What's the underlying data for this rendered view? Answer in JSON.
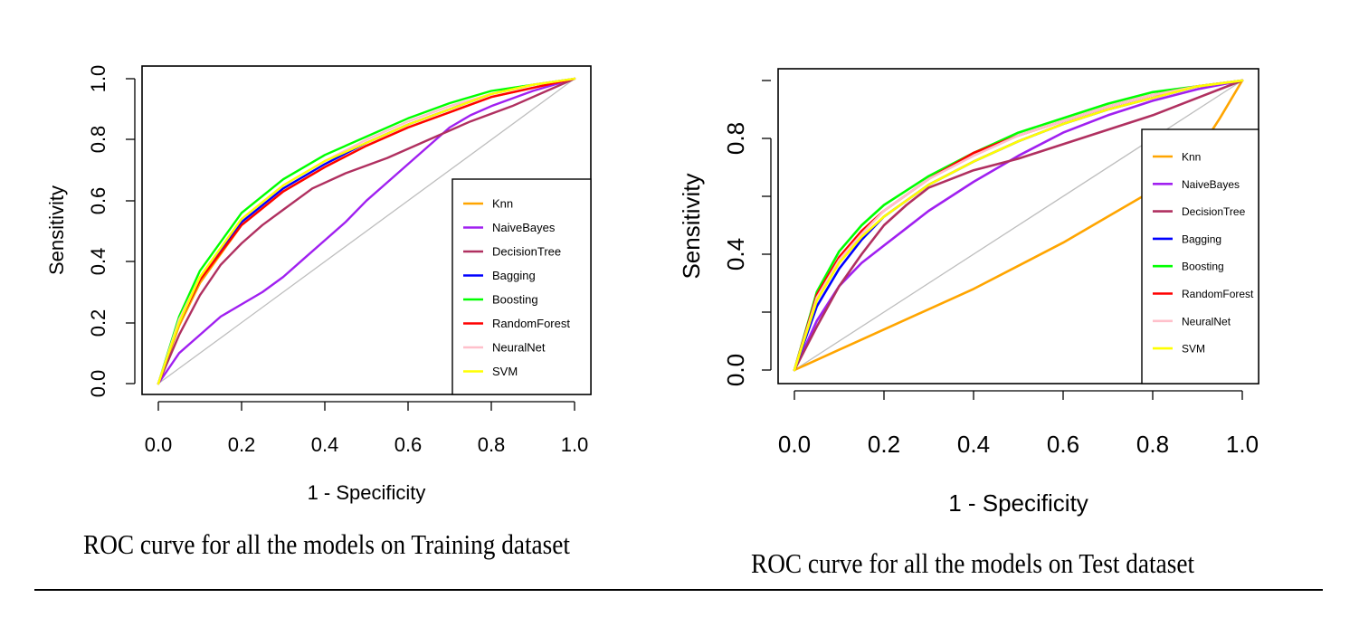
{
  "chart_data": [
    {
      "type": "line",
      "title": "",
      "caption": "ROC curve for all the models on Training dataset",
      "xlabel": "1 - Specificity",
      "ylabel": "Sensitivity",
      "xlim": [
        0,
        1
      ],
      "ylim": [
        0,
        1
      ],
      "xticks": [
        "0.0",
        "0.2",
        "0.4",
        "0.6",
        "0.8",
        "1.0"
      ],
      "yticks": [
        "0.0",
        "0.2",
        "0.4",
        "0.6",
        "0.8",
        "1.0"
      ],
      "diagonal_color": "#bebebe",
      "legend_position": "bottom-right",
      "series": [
        {
          "name": "Knn",
          "color": "#FFA500",
          "x": [
            0,
            0.05,
            0.1,
            0.2,
            0.3,
            0.4,
            0.5,
            0.6,
            0.7,
            0.8,
            0.9,
            1.0
          ],
          "y": [
            0,
            0.19,
            0.33,
            0.52,
            0.63,
            0.71,
            0.78,
            0.84,
            0.89,
            0.94,
            0.97,
            1.0
          ]
        },
        {
          "name": "NaiveBayes",
          "color": "#A020F0",
          "x": [
            0,
            0.05,
            0.1,
            0.15,
            0.2,
            0.25,
            0.3,
            0.35,
            0.4,
            0.45,
            0.5,
            0.55,
            0.6,
            0.65,
            0.7,
            0.75,
            0.8,
            0.9,
            1.0
          ],
          "y": [
            0,
            0.1,
            0.16,
            0.22,
            0.26,
            0.3,
            0.35,
            0.41,
            0.47,
            0.53,
            0.6,
            0.66,
            0.72,
            0.78,
            0.84,
            0.88,
            0.91,
            0.96,
            1.0
          ]
        },
        {
          "name": "DecisionTree",
          "color": "#B03060",
          "x": [
            0,
            0.05,
            0.1,
            0.15,
            0.2,
            0.25,
            0.3,
            0.37,
            0.45,
            0.55,
            0.65,
            0.75,
            0.85,
            1.0
          ],
          "y": [
            0,
            0.16,
            0.29,
            0.39,
            0.46,
            0.52,
            0.57,
            0.64,
            0.69,
            0.74,
            0.8,
            0.86,
            0.91,
            1.0
          ]
        },
        {
          "name": "Bagging",
          "color": "#0000FF",
          "x": [
            0,
            0.05,
            0.1,
            0.2,
            0.3,
            0.4,
            0.5,
            0.6,
            0.7,
            0.8,
            0.9,
            1.0
          ],
          "y": [
            0,
            0.2,
            0.34,
            0.53,
            0.64,
            0.72,
            0.79,
            0.85,
            0.9,
            0.95,
            0.98,
            1.0
          ]
        },
        {
          "name": "Boosting",
          "color": "#00FF00",
          "x": [
            0,
            0.05,
            0.1,
            0.2,
            0.3,
            0.4,
            0.5,
            0.6,
            0.7,
            0.8,
            0.9,
            1.0
          ],
          "y": [
            0,
            0.22,
            0.37,
            0.56,
            0.67,
            0.75,
            0.81,
            0.87,
            0.92,
            0.96,
            0.98,
            1.0
          ]
        },
        {
          "name": "RandomForest",
          "color": "#FF0000",
          "x": [
            0,
            0.05,
            0.1,
            0.2,
            0.3,
            0.4,
            0.5,
            0.6,
            0.7,
            0.8,
            0.9,
            1.0
          ],
          "y": [
            0,
            0.2,
            0.34,
            0.52,
            0.63,
            0.71,
            0.78,
            0.84,
            0.89,
            0.94,
            0.97,
            1.0
          ]
        },
        {
          "name": "NeuralNet",
          "color": "#FFC0CB",
          "x": [
            0,
            0.05,
            0.1,
            0.2,
            0.3,
            0.4,
            0.5,
            0.6,
            0.7,
            0.8,
            0.9,
            1.0
          ],
          "y": [
            0,
            0.21,
            0.35,
            0.54,
            0.65,
            0.73,
            0.8,
            0.86,
            0.91,
            0.95,
            0.98,
            1.0
          ]
        },
        {
          "name": "SVM",
          "color": "#FFFF00",
          "x": [
            0,
            0.05,
            0.1,
            0.2,
            0.3,
            0.4,
            0.5,
            0.6,
            0.7,
            0.8,
            0.9,
            1.0
          ],
          "y": [
            0,
            0.2,
            0.35,
            0.54,
            0.65,
            0.73,
            0.79,
            0.85,
            0.9,
            0.95,
            0.98,
            1.0
          ]
        }
      ]
    },
    {
      "type": "line",
      "title": "",
      "caption": "ROC curve for all the models on Test dataset",
      "xlabel": "1 - Specificity",
      "ylabel": "Sensitivity",
      "xlim": [
        0,
        1
      ],
      "ylim": [
        0,
        1
      ],
      "xticks": [
        "0.0",
        "0.2",
        "0.4",
        "0.6",
        "0.8",
        "1.0"
      ],
      "yticks": [
        "0.0",
        "0.4",
        "0.8"
      ],
      "diagonal_color": "#bebebe",
      "legend_position": "bottom-right",
      "series": [
        {
          "name": "Knn",
          "color": "#FFA500",
          "x": [
            0,
            0.1,
            0.2,
            0.3,
            0.4,
            0.5,
            0.6,
            0.7,
            0.8,
            0.9,
            0.95,
            1.0
          ],
          "y": [
            0,
            0.07,
            0.14,
            0.21,
            0.28,
            0.36,
            0.44,
            0.53,
            0.62,
            0.75,
            0.87,
            1.0
          ]
        },
        {
          "name": "NaiveBayes",
          "color": "#A020F0",
          "x": [
            0,
            0.05,
            0.1,
            0.15,
            0.2,
            0.25,
            0.3,
            0.35,
            0.4,
            0.5,
            0.6,
            0.7,
            0.8,
            0.9,
            1.0
          ],
          "y": [
            0,
            0.17,
            0.29,
            0.37,
            0.43,
            0.49,
            0.55,
            0.6,
            0.65,
            0.74,
            0.82,
            0.88,
            0.93,
            0.97,
            1.0
          ]
        },
        {
          "name": "DecisionTree",
          "color": "#B03060",
          "x": [
            0,
            0.05,
            0.1,
            0.15,
            0.2,
            0.25,
            0.3,
            0.35,
            0.4,
            0.5,
            0.6,
            0.7,
            0.8,
            0.9,
            1.0
          ],
          "y": [
            0,
            0.15,
            0.29,
            0.4,
            0.5,
            0.57,
            0.63,
            0.66,
            0.69,
            0.73,
            0.78,
            0.83,
            0.88,
            0.94,
            1.0
          ]
        },
        {
          "name": "Bagging",
          "color": "#0000FF",
          "x": [
            0,
            0.05,
            0.1,
            0.15,
            0.2,
            0.3,
            0.4,
            0.5,
            0.6,
            0.7,
            0.8,
            0.9,
            1.0
          ],
          "y": [
            0,
            0.22,
            0.35,
            0.45,
            0.53,
            0.64,
            0.72,
            0.79,
            0.85,
            0.9,
            0.94,
            0.98,
            1.0
          ]
        },
        {
          "name": "Boosting",
          "color": "#00FF00",
          "x": [
            0,
            0.05,
            0.1,
            0.15,
            0.2,
            0.3,
            0.4,
            0.5,
            0.6,
            0.7,
            0.8,
            0.9,
            1.0
          ],
          "y": [
            0,
            0.27,
            0.41,
            0.5,
            0.57,
            0.67,
            0.75,
            0.82,
            0.87,
            0.92,
            0.96,
            0.98,
            1.0
          ]
        },
        {
          "name": "RandomForest",
          "color": "#FF0000",
          "x": [
            0,
            0.05,
            0.1,
            0.15,
            0.2,
            0.3,
            0.4,
            0.5,
            0.6,
            0.7,
            0.8,
            0.9,
            1.0
          ],
          "y": [
            0,
            0.26,
            0.39,
            0.48,
            0.55,
            0.66,
            0.75,
            0.81,
            0.86,
            0.91,
            0.95,
            0.98,
            1.0
          ]
        },
        {
          "name": "NeuralNet",
          "color": "#FFC0CB",
          "x": [
            0,
            0.05,
            0.1,
            0.15,
            0.2,
            0.3,
            0.4,
            0.5,
            0.6,
            0.7,
            0.8,
            0.9,
            1.0
          ],
          "y": [
            0,
            0.25,
            0.38,
            0.47,
            0.55,
            0.66,
            0.74,
            0.81,
            0.86,
            0.91,
            0.95,
            0.98,
            1.0
          ]
        },
        {
          "name": "SVM",
          "color": "#FFFF00",
          "x": [
            0,
            0.05,
            0.1,
            0.15,
            0.2,
            0.3,
            0.4,
            0.5,
            0.6,
            0.7,
            0.8,
            0.9,
            1.0
          ],
          "y": [
            0,
            0.24,
            0.37,
            0.46,
            0.53,
            0.64,
            0.72,
            0.79,
            0.85,
            0.9,
            0.94,
            0.98,
            1.0
          ]
        }
      ]
    }
  ]
}
